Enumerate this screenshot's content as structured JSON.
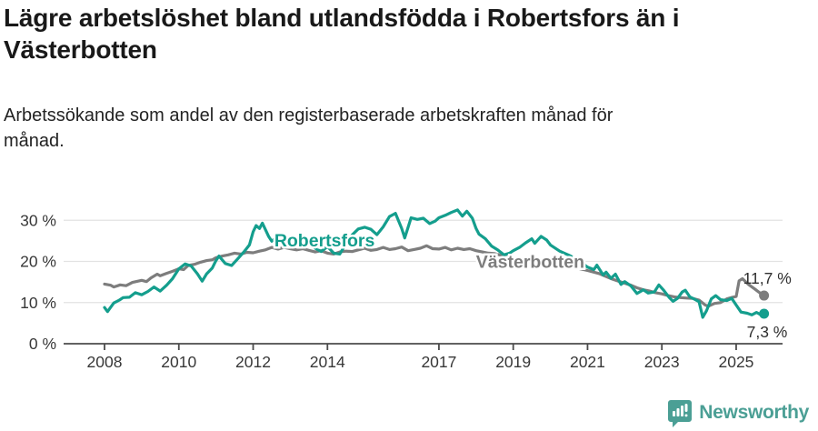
{
  "header": {
    "title_line1": "Lägre arbetslöshet bland utlandsfödda i Robertsfors än i",
    "title_line2": "Västerbotten",
    "subtitle_line1": "Arbetssökande som andel av den registerbaserade arbetskraften månad för",
    "subtitle_line2": "månad."
  },
  "footer": {
    "brand": "Newsworthy",
    "brand_color": "#4b9f95"
  },
  "chart_data": {
    "type": "line",
    "title": "Lägre arbetslöshet bland utlandsfödda i Robertsfors än i Västerbotten",
    "xlabel": "",
    "ylabel": "Arbetssökande som andel av den registerbaserade arbetskraften (%)",
    "grid": true,
    "legend_position": "inline-annotations",
    "xlim": [
      2007.7,
      2026.3
    ],
    "ylim": [
      0,
      35
    ],
    "x_ticks": [
      {
        "value": 2008,
        "label": "2008"
      },
      {
        "value": 2010,
        "label": "2010"
      },
      {
        "value": 2012,
        "label": "2012"
      },
      {
        "value": 2014,
        "label": "2014"
      },
      {
        "value": 2017,
        "label": "2017"
      },
      {
        "value": 2019,
        "label": "2019"
      },
      {
        "value": 2021,
        "label": "2021"
      },
      {
        "value": 2023,
        "label": "2023"
      },
      {
        "value": 2025,
        "label": "2025"
      }
    ],
    "y_ticks": [
      {
        "value": 0,
        "label": "0 %"
      },
      {
        "value": 10,
        "label": "10 %"
      },
      {
        "value": 20,
        "label": "20 %"
      },
      {
        "value": 30,
        "label": "30 %"
      }
    ],
    "axis_color": "#4b4b4b",
    "grid_color": "#e3e3e3",
    "tick_label_color": "#383838",
    "series": [
      {
        "name": "Västerbotten",
        "color": "#7d7d7d",
        "end_label": "11,7 %",
        "end_value": 11.7,
        "label_pos": {
          "x": 2018.0,
          "y": 18.5
        },
        "points": [
          [
            2008.0,
            14.5
          ],
          [
            2008.17,
            14.2
          ],
          [
            2008.25,
            13.8
          ],
          [
            2008.42,
            14.3
          ],
          [
            2008.58,
            14.1
          ],
          [
            2008.75,
            14.9
          ],
          [
            2009.0,
            15.4
          ],
          [
            2009.13,
            15.1
          ],
          [
            2009.25,
            16.0
          ],
          [
            2009.42,
            16.9
          ],
          [
            2009.5,
            16.5
          ],
          [
            2009.67,
            17.1
          ],
          [
            2009.83,
            17.6
          ],
          [
            2010.0,
            18.2
          ],
          [
            2010.13,
            18.0
          ],
          [
            2010.25,
            19.0
          ],
          [
            2010.42,
            19.3
          ],
          [
            2010.58,
            19.8
          ],
          [
            2010.75,
            20.2
          ],
          [
            2010.9,
            20.4
          ],
          [
            2011.0,
            20.9
          ],
          [
            2011.17,
            21.3
          ],
          [
            2011.33,
            21.6
          ],
          [
            2011.5,
            22.0
          ],
          [
            2011.67,
            21.8
          ],
          [
            2011.83,
            22.2
          ],
          [
            2012.0,
            22.1
          ],
          [
            2012.17,
            22.5
          ],
          [
            2012.33,
            22.8
          ],
          [
            2012.5,
            23.4
          ],
          [
            2012.67,
            23.0
          ],
          [
            2012.83,
            23.4
          ],
          [
            2013.0,
            23.1
          ],
          [
            2013.17,
            22.8
          ],
          [
            2013.33,
            23.1
          ],
          [
            2013.5,
            22.7
          ],
          [
            2013.67,
            22.3
          ],
          [
            2013.83,
            22.6
          ],
          [
            2014.0,
            22.0
          ],
          [
            2014.17,
            21.8
          ],
          [
            2014.33,
            22.3
          ],
          [
            2014.5,
            22.5
          ],
          [
            2014.67,
            22.4
          ],
          [
            2014.83,
            22.8
          ],
          [
            2015.0,
            23.2
          ],
          [
            2015.17,
            22.7
          ],
          [
            2015.33,
            22.9
          ],
          [
            2015.5,
            23.4
          ],
          [
            2015.67,
            22.9
          ],
          [
            2015.83,
            23.1
          ],
          [
            2016.0,
            23.5
          ],
          [
            2016.17,
            22.6
          ],
          [
            2016.33,
            22.9
          ],
          [
            2016.5,
            23.2
          ],
          [
            2016.67,
            23.8
          ],
          [
            2016.83,
            23.1
          ],
          [
            2017.0,
            23.0
          ],
          [
            2017.17,
            23.4
          ],
          [
            2017.33,
            22.8
          ],
          [
            2017.5,
            23.2
          ],
          [
            2017.67,
            22.9
          ],
          [
            2017.83,
            23.1
          ],
          [
            2018.0,
            22.6
          ],
          [
            2018.17,
            22.3
          ],
          [
            2018.33,
            22.0
          ],
          [
            2018.5,
            21.9
          ],
          [
            2018.67,
            21.5
          ],
          [
            2018.83,
            21.1
          ],
          [
            2019.0,
            20.7
          ],
          [
            2019.25,
            20.2
          ],
          [
            2019.5,
            19.9
          ],
          [
            2019.75,
            19.6
          ],
          [
            2020.0,
            19.8
          ],
          [
            2020.25,
            19.4
          ],
          [
            2020.5,
            18.9
          ],
          [
            2020.75,
            18.3
          ],
          [
            2021.0,
            17.8
          ],
          [
            2021.17,
            17.4
          ],
          [
            2021.33,
            17.0
          ],
          [
            2021.5,
            16.3
          ],
          [
            2021.67,
            15.7
          ],
          [
            2021.83,
            15.2
          ],
          [
            2022.0,
            14.7
          ],
          [
            2022.17,
            14.2
          ],
          [
            2022.33,
            13.6
          ],
          [
            2022.5,
            13.1
          ],
          [
            2022.67,
            12.8
          ],
          [
            2022.83,
            12.4
          ],
          [
            2023.0,
            12.1
          ],
          [
            2023.17,
            11.7
          ],
          [
            2023.33,
            11.4
          ],
          [
            2023.5,
            11.2
          ],
          [
            2023.67,
            11.1
          ],
          [
            2023.83,
            11.0
          ],
          [
            2024.0,
            10.6
          ],
          [
            2024.17,
            9.4
          ],
          [
            2024.25,
            9.1
          ],
          [
            2024.42,
            9.8
          ],
          [
            2024.58,
            10.0
          ],
          [
            2024.75,
            10.9
          ],
          [
            2024.9,
            11.3
          ],
          [
            2025.0,
            11.5
          ],
          [
            2025.08,
            15.3
          ],
          [
            2025.17,
            15.8
          ],
          [
            2025.33,
            14.4
          ],
          [
            2025.5,
            13.3
          ],
          [
            2025.63,
            12.4
          ],
          [
            2025.75,
            11.7
          ]
        ]
      },
      {
        "name": "Robertsfors",
        "color": "#149e8d",
        "end_label": "7,3 %",
        "end_value": 7.3,
        "label_pos": {
          "x": 2012.57,
          "y": 23.6
        },
        "points": [
          [
            2008.0,
            8.8
          ],
          [
            2008.08,
            7.8
          ],
          [
            2008.25,
            9.9
          ],
          [
            2008.4,
            10.6
          ],
          [
            2008.5,
            11.2
          ],
          [
            2008.67,
            11.3
          ],
          [
            2008.83,
            12.4
          ],
          [
            2009.0,
            11.9
          ],
          [
            2009.17,
            12.7
          ],
          [
            2009.33,
            13.8
          ],
          [
            2009.5,
            12.8
          ],
          [
            2009.67,
            14.2
          ],
          [
            2009.83,
            15.8
          ],
          [
            2010.0,
            18.2
          ],
          [
            2010.17,
            19.4
          ],
          [
            2010.33,
            18.9
          ],
          [
            2010.5,
            17.0
          ],
          [
            2010.63,
            15.2
          ],
          [
            2010.75,
            17.0
          ],
          [
            2010.9,
            18.4
          ],
          [
            2011.0,
            20.2
          ],
          [
            2011.08,
            21.3
          ],
          [
            2011.25,
            19.5
          ],
          [
            2011.42,
            19.0
          ],
          [
            2011.58,
            20.6
          ],
          [
            2011.75,
            22.3
          ],
          [
            2011.9,
            24.0
          ],
          [
            2012.0,
            27.2
          ],
          [
            2012.08,
            28.7
          ],
          [
            2012.17,
            28.0
          ],
          [
            2012.25,
            29.3
          ],
          [
            2012.42,
            26.0
          ],
          [
            2012.5,
            24.9
          ],
          [
            2012.67,
            26.1
          ],
          [
            2012.83,
            25.3
          ],
          [
            2013.0,
            24.7
          ],
          [
            2013.17,
            25.2
          ],
          [
            2013.33,
            24.3
          ],
          [
            2013.5,
            24.6
          ],
          [
            2013.67,
            23.2
          ],
          [
            2013.83,
            22.4
          ],
          [
            2014.0,
            23.6
          ],
          [
            2014.17,
            22.0
          ],
          [
            2014.33,
            21.8
          ],
          [
            2014.5,
            24.3
          ],
          [
            2014.67,
            26.5
          ],
          [
            2014.83,
            27.9
          ],
          [
            2015.0,
            28.3
          ],
          [
            2015.17,
            27.8
          ],
          [
            2015.33,
            26.5
          ],
          [
            2015.5,
            28.4
          ],
          [
            2015.67,
            30.9
          ],
          [
            2015.83,
            31.7
          ],
          [
            2016.0,
            28.0
          ],
          [
            2016.08,
            25.7
          ],
          [
            2016.25,
            30.6
          ],
          [
            2016.42,
            30.2
          ],
          [
            2016.58,
            30.5
          ],
          [
            2016.75,
            29.2
          ],
          [
            2016.9,
            29.8
          ],
          [
            2017.0,
            30.6
          ],
          [
            2017.17,
            31.2
          ],
          [
            2017.33,
            31.9
          ],
          [
            2017.5,
            32.5
          ],
          [
            2017.63,
            31.0
          ],
          [
            2017.75,
            32.2
          ],
          [
            2017.9,
            30.5
          ],
          [
            2018.0,
            28.0
          ],
          [
            2018.08,
            26.6
          ],
          [
            2018.25,
            25.5
          ],
          [
            2018.42,
            23.7
          ],
          [
            2018.58,
            22.8
          ],
          [
            2018.75,
            21.6
          ],
          [
            2018.9,
            22.0
          ],
          [
            2019.0,
            22.6
          ],
          [
            2019.17,
            23.4
          ],
          [
            2019.33,
            24.5
          ],
          [
            2019.5,
            25.5
          ],
          [
            2019.58,
            24.4
          ],
          [
            2019.75,
            26.1
          ],
          [
            2019.9,
            25.2
          ],
          [
            2020.0,
            24.0
          ],
          [
            2020.25,
            22.5
          ],
          [
            2020.5,
            21.5
          ],
          [
            2020.75,
            20.3
          ],
          [
            2021.0,
            18.6
          ],
          [
            2021.17,
            18.0
          ],
          [
            2021.25,
            19.1
          ],
          [
            2021.42,
            16.7
          ],
          [
            2021.5,
            17.4
          ],
          [
            2021.63,
            15.9
          ],
          [
            2021.75,
            16.9
          ],
          [
            2021.9,
            14.4
          ],
          [
            2022.0,
            15.1
          ],
          [
            2022.17,
            14.0
          ],
          [
            2022.33,
            12.2
          ],
          [
            2022.5,
            13.1
          ],
          [
            2022.63,
            12.3
          ],
          [
            2022.8,
            12.6
          ],
          [
            2022.92,
            14.3
          ],
          [
            2023.05,
            13.0
          ],
          [
            2023.2,
            11.2
          ],
          [
            2023.3,
            10.3
          ],
          [
            2023.42,
            11.0
          ],
          [
            2023.55,
            12.6
          ],
          [
            2023.63,
            13.0
          ],
          [
            2023.75,
            11.4
          ],
          [
            2023.88,
            10.8
          ],
          [
            2024.0,
            10.2
          ],
          [
            2024.1,
            6.4
          ],
          [
            2024.2,
            8.0
          ],
          [
            2024.33,
            10.9
          ],
          [
            2024.45,
            11.7
          ],
          [
            2024.58,
            10.7
          ],
          [
            2024.75,
            10.5
          ],
          [
            2024.88,
            11.0
          ],
          [
            2025.0,
            9.4
          ],
          [
            2025.13,
            7.7
          ],
          [
            2025.3,
            7.4
          ],
          [
            2025.42,
            7.0
          ],
          [
            2025.55,
            7.6
          ],
          [
            2025.65,
            7.1
          ],
          [
            2025.75,
            7.3
          ]
        ]
      }
    ]
  }
}
